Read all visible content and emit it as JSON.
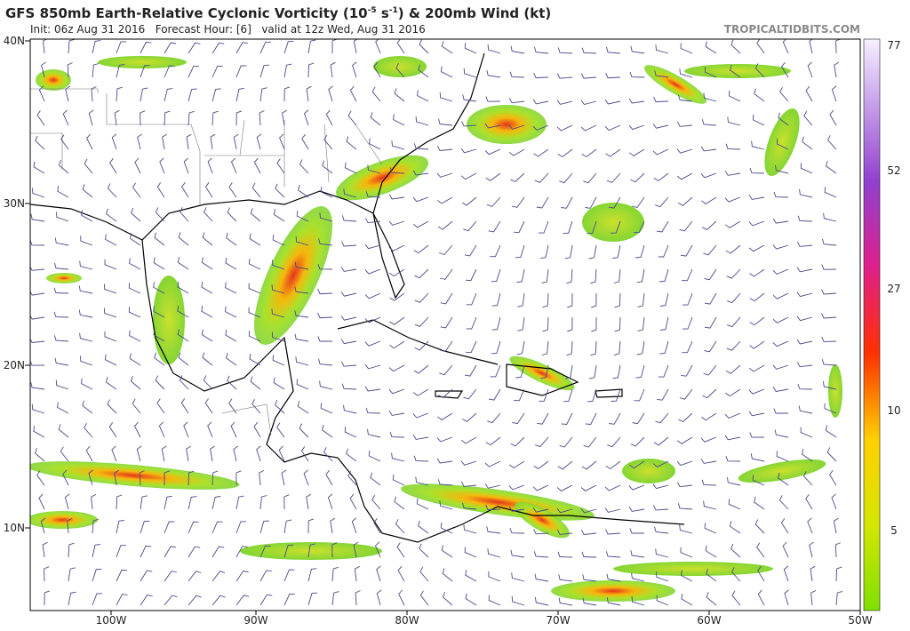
{
  "header": {
    "title": {
      "prefix": "GFS 850mb Earth-Relative Cyclonic Vorticity (10",
      "exp1": "-5",
      "mid": " s",
      "exp2": "-1",
      "suffix": ") & 200mb Wind (kt)"
    },
    "subtitle": "Init: 06z Aug 31 2016   Forecast Hour: [6]   valid at 12z Wed, Aug 31 2016",
    "site": "TROPICALTIDBITS.COM"
  },
  "map": {
    "lat_labels": [
      "40N",
      "30N",
      "20N",
      "10N"
    ],
    "lon_labels": [
      "100W",
      "90W",
      "80W",
      "70W",
      "60W",
      "50W"
    ]
  },
  "colorbar": {
    "labels": [
      "77",
      "52",
      "27",
      "10",
      "5"
    ]
  }
}
